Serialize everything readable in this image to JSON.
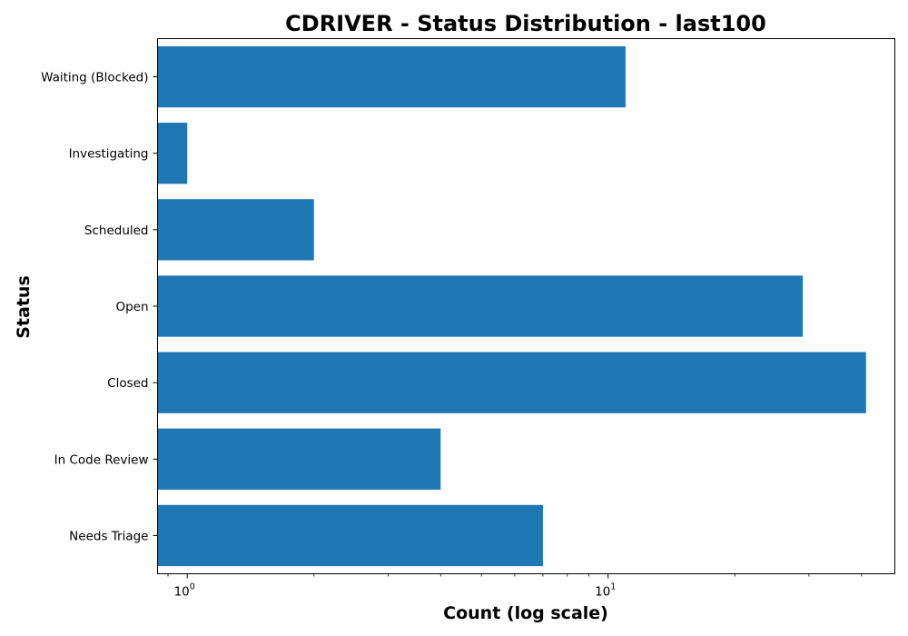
{
  "chart_data": {
    "type": "bar",
    "orientation": "horizontal",
    "title": "CDRIVER - Status Distribution - last100",
    "xlabel": "Count (log scale)",
    "ylabel": "Status",
    "x_scale": "log",
    "xlim": [
      0.85,
      48
    ],
    "categories": [
      "Waiting (Blocked)",
      "Investigating",
      "Scheduled",
      "Open",
      "Closed",
      "In Code Review",
      "Needs Triage"
    ],
    "values": [
      11,
      1,
      2,
      29,
      41,
      4,
      7
    ],
    "x_ticks": [
      {
        "base": "10",
        "exp": "0"
      },
      {
        "base": "10",
        "exp": "1"
      }
    ],
    "bar_color": "#1f77b4",
    "grid": false,
    "legend": "none"
  }
}
